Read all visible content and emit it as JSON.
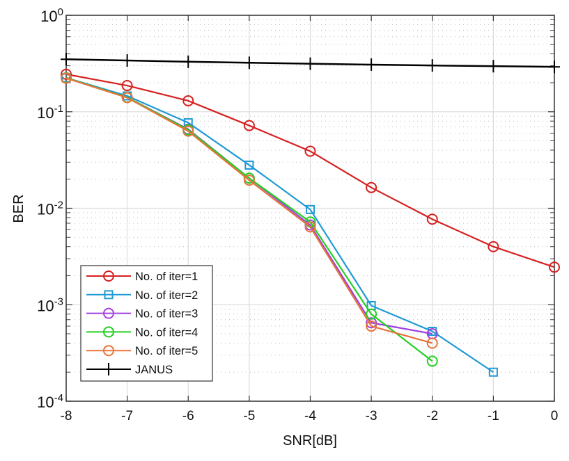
{
  "chart_data": {
    "type": "line",
    "title": "",
    "xlabel": "SNR[dB]",
    "ylabel": "BER",
    "xscale": "linear",
    "yscale": "log",
    "xlim": [
      -8,
      0
    ],
    "ylim": [
      0.0001,
      1
    ],
    "grid": true,
    "legend_position": "bottom-left",
    "x_ticks": [
      "-8",
      "-7",
      "-6",
      "-5",
      "-4",
      "-3",
      "-2",
      "-1",
      "0"
    ],
    "x_tick_values": [
      -8,
      -7,
      -6,
      -5,
      -4,
      -3,
      -2,
      -1,
      0
    ],
    "y_ticks": [
      {
        "base": "10",
        "exp": "0",
        "value": 1
      },
      {
        "base": "10",
        "exp": "-1",
        "value": 0.1
      },
      {
        "base": "10",
        "exp": "-2",
        "value": 0.01
      },
      {
        "base": "10",
        "exp": "-3",
        "value": 0.001
      },
      {
        "base": "10",
        "exp": "-4",
        "value": 0.0001
      }
    ],
    "series": [
      {
        "name": "No. of iter=1",
        "color": "#d62020",
        "marker": "circle",
        "x": [
          -8,
          -7,
          -6,
          -5,
          -4,
          -3,
          -2,
          -1,
          0
        ],
        "values": [
          0.245,
          0.187,
          0.13,
          0.072,
          0.039,
          0.0164,
          0.0077,
          0.004,
          0.00245
        ]
      },
      {
        "name": "No. of iter=2",
        "color": "#1f9ad6",
        "marker": "square",
        "x": [
          -8,
          -7,
          -6,
          -5,
          -4,
          -3,
          -2,
          -1
        ],
        "values": [
          0.225,
          0.146,
          0.077,
          0.028,
          0.0097,
          0.00098,
          0.00053,
          0.0002
        ]
      },
      {
        "name": "No. of iter=3",
        "color": "#a040e0",
        "marker": "circle",
        "x": [
          -8,
          -7,
          -6,
          -5,
          -4,
          -3,
          -2
        ],
        "values": [
          0.225,
          0.141,
          0.066,
          0.0205,
          0.0067,
          0.00065,
          0.0005
        ]
      },
      {
        "name": "No. of iter=4",
        "color": "#22d022",
        "marker": "circle",
        "x": [
          -8,
          -7,
          -6,
          -5,
          -4,
          -3,
          -2
        ],
        "values": [
          0.225,
          0.141,
          0.065,
          0.0205,
          0.0072,
          0.0008,
          0.00026
        ]
      },
      {
        "name": "No. of iter=5",
        "color": "#e8733a",
        "marker": "circle",
        "x": [
          -8,
          -7,
          -6,
          -5,
          -4,
          -3,
          -2
        ],
        "values": [
          0.223,
          0.14,
          0.063,
          0.0195,
          0.0064,
          0.0006,
          0.0004
        ]
      },
      {
        "name": "JANUS",
        "color": "#000000",
        "marker": "plus",
        "x": [
          -8,
          -7,
          -6,
          -5,
          -4,
          -3,
          -2,
          -1,
          0
        ],
        "values": [
          0.35,
          0.34,
          0.33,
          0.322,
          0.315,
          0.308,
          0.302,
          0.297,
          0.292
        ]
      }
    ]
  }
}
